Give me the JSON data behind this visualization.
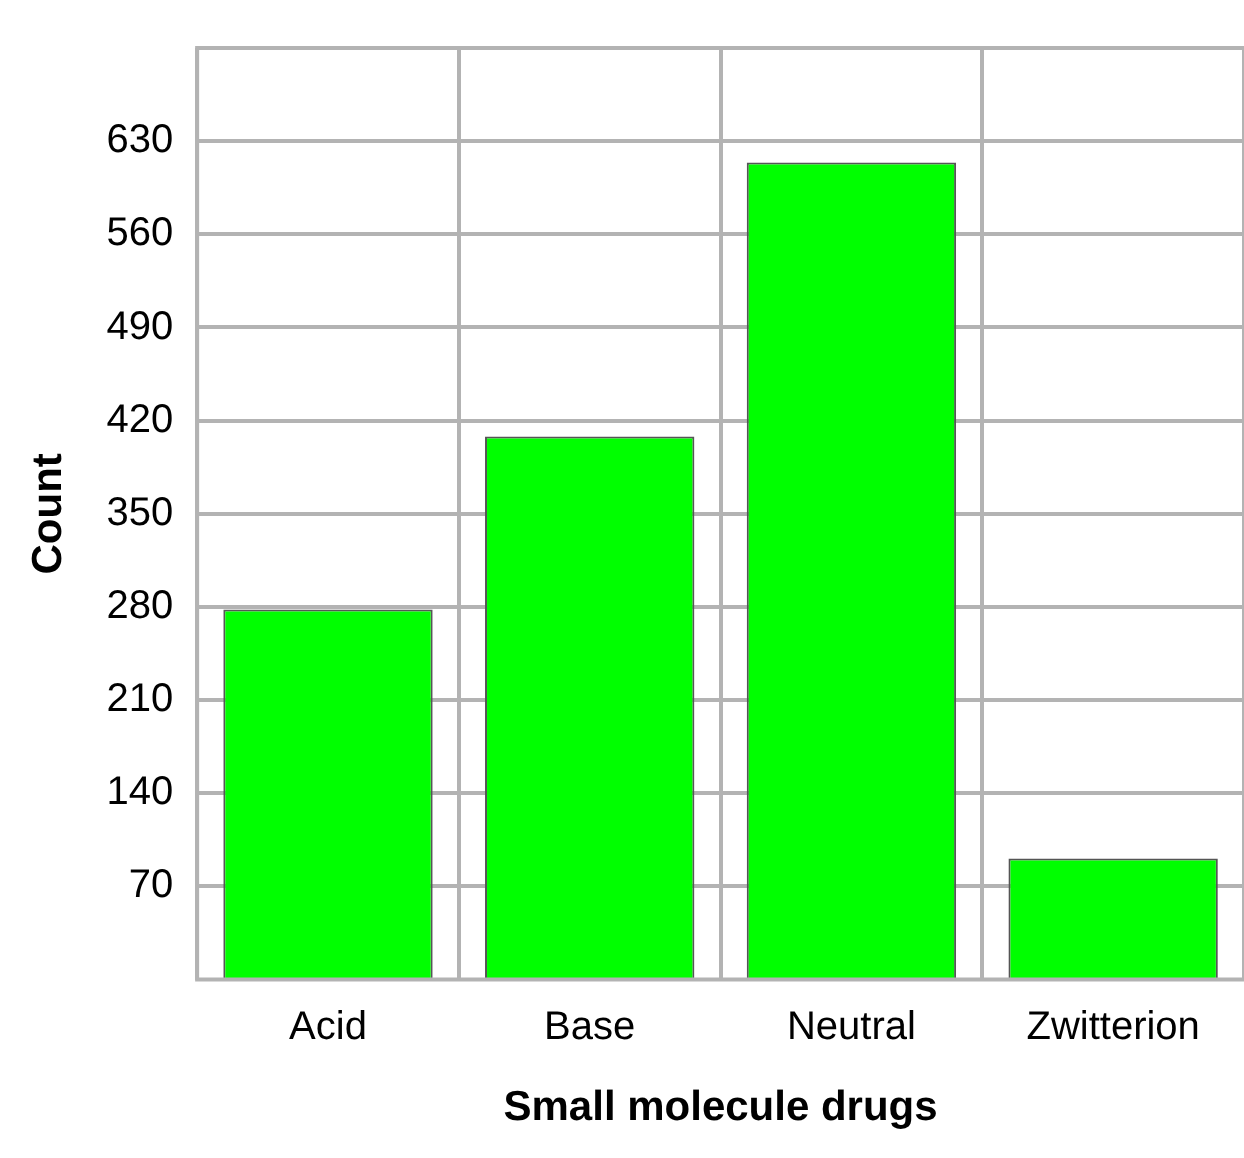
{
  "chart_data": {
    "type": "bar",
    "xlabel": "Small molecule drugs",
    "ylabel": "Count",
    "categories": [
      "Acid",
      "Base",
      "Neutral",
      "Zwitterion"
    ],
    "values": [
      278,
      408,
      614,
      91
    ],
    "color": "#00ff00",
    "ylim": [
      0,
      700
    ],
    "yticks": [
      70,
      140,
      210,
      280,
      350,
      420,
      490,
      560,
      630
    ],
    "grid": true
  }
}
